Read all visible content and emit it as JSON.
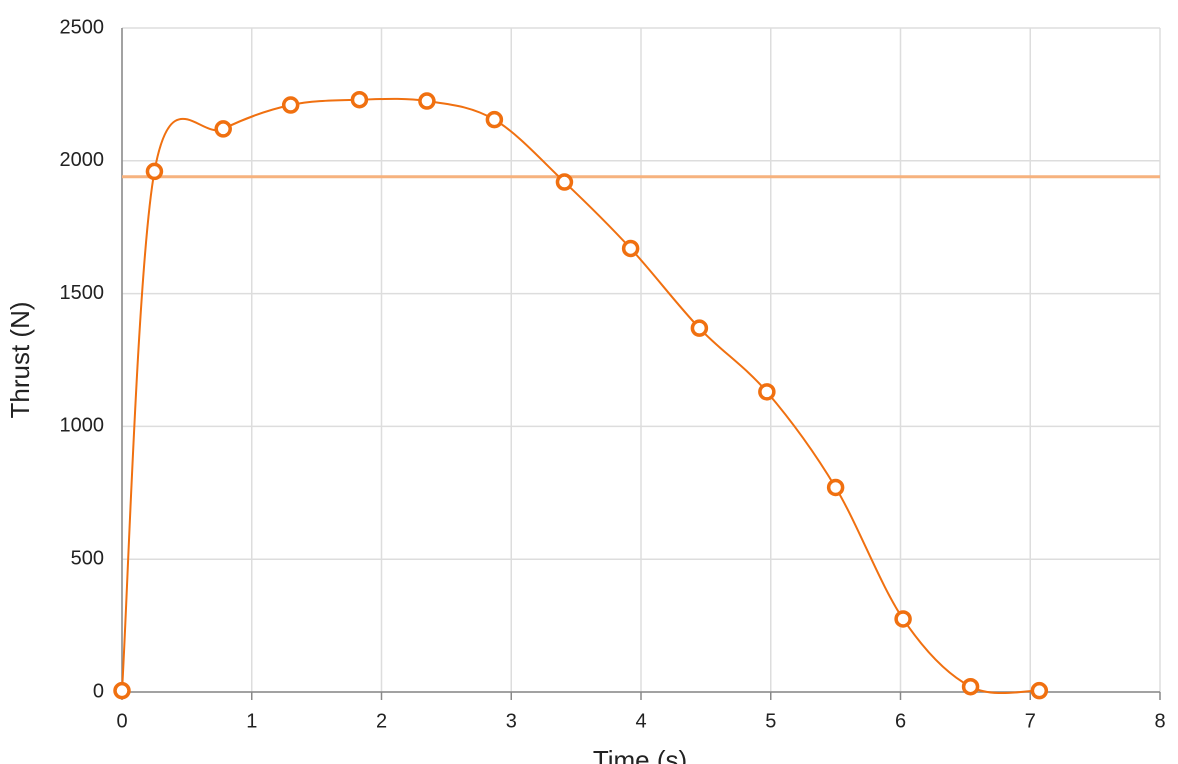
{
  "chart_data": {
    "type": "line",
    "x_label": "Time (s)",
    "y_label": "Thrust (N)",
    "x": [
      0,
      0.25,
      0.78,
      1.3,
      1.83,
      2.35,
      2.87,
      3.41,
      3.92,
      4.45,
      4.97,
      5.5,
      6.02,
      6.54,
      7.07
    ],
    "series": [
      {
        "color": "#f07010",
        "values": [
          5,
          1960,
          2120,
          2210,
          2230,
          2225,
          2155,
          1920,
          1670,
          1370,
          1130,
          770,
          275,
          20,
          5
        ]
      }
    ],
    "average": 1940,
    "average_color": "#f6b27e",
    "xlim": [
      0,
      8
    ],
    "xticks": [
      0,
      1,
      2,
      3,
      4,
      5,
      6,
      7,
      8
    ],
    "ylim": [
      0,
      2500
    ],
    "yticks": [
      0,
      500,
      1000,
      1500,
      2000,
      2500
    ],
    "grid": true
  }
}
